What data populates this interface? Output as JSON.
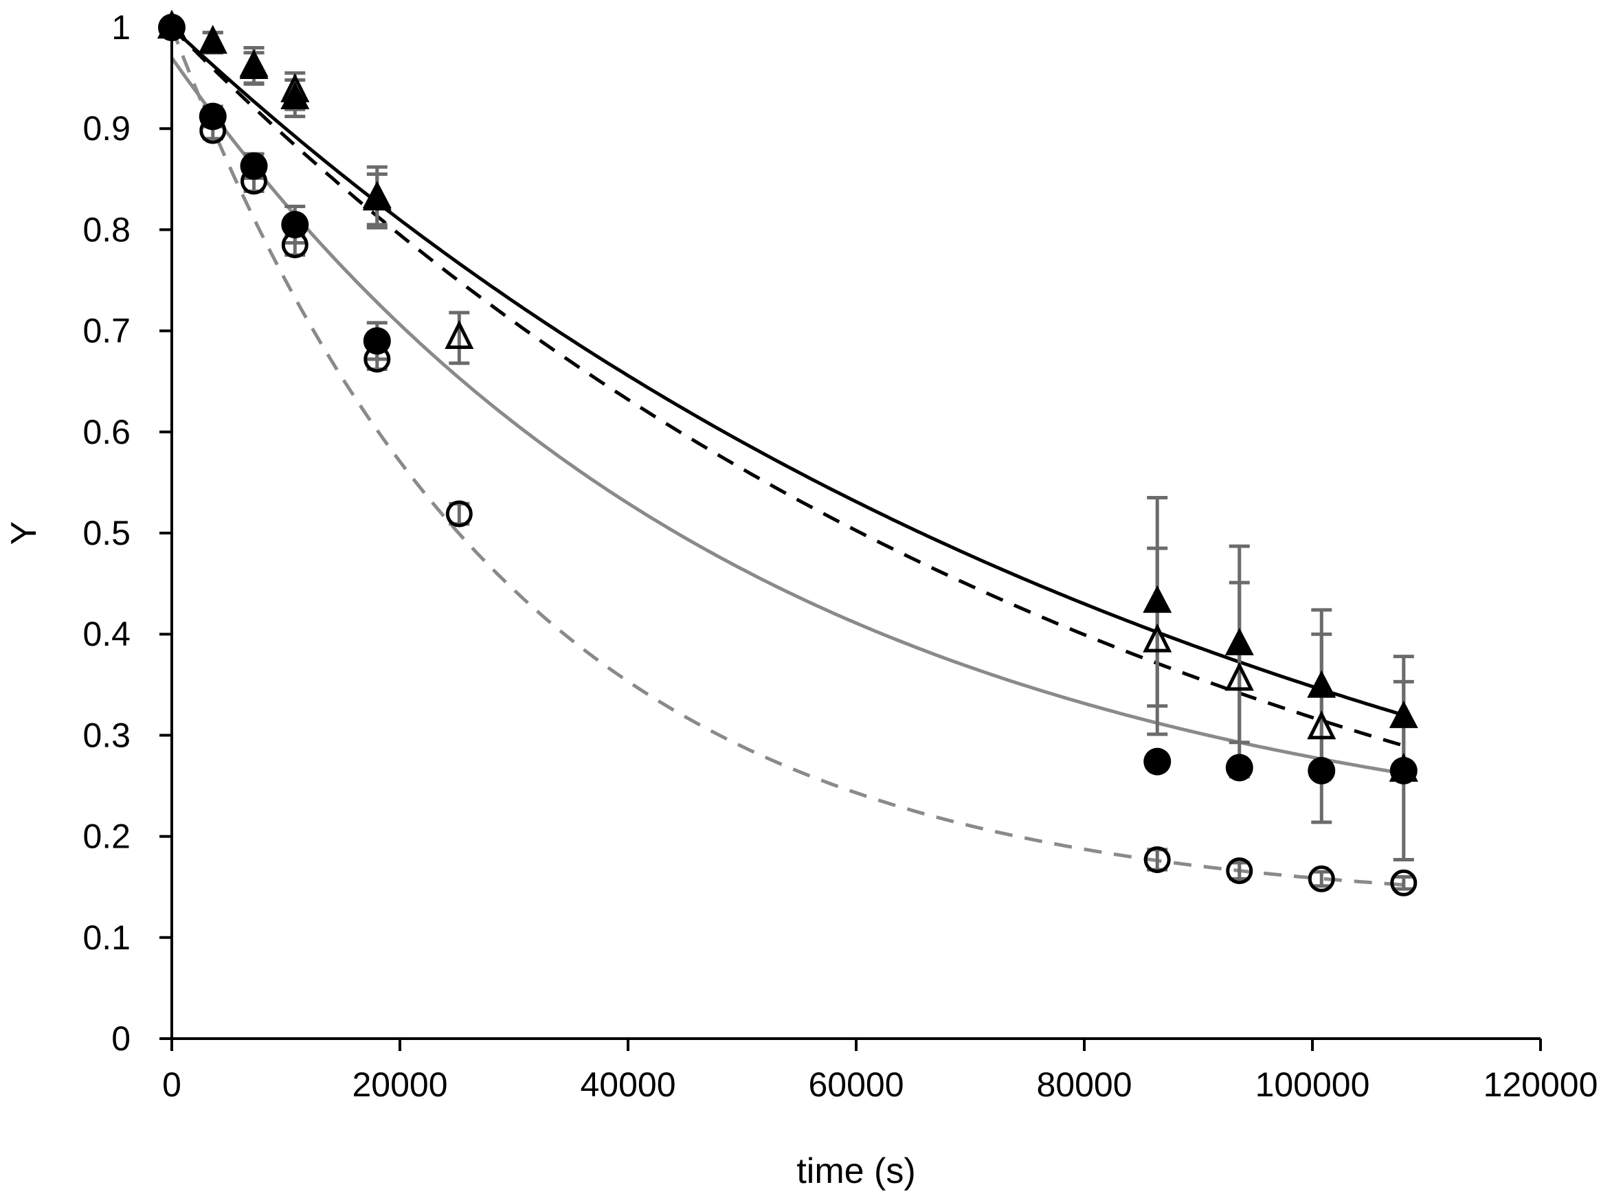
{
  "chart_data": {
    "type": "scatter",
    "title": "",
    "xlabel": "time (s)",
    "ylabel": "Y",
    "xlim": [
      0,
      120000
    ],
    "ylim": [
      0,
      1
    ],
    "x_ticks": [
      0,
      20000,
      40000,
      60000,
      80000,
      100000,
      120000
    ],
    "y_ticks": [
      0,
      0.1,
      0.2,
      0.3,
      0.4,
      0.5,
      0.6,
      0.7,
      0.8,
      0.9,
      1
    ],
    "x_tick_labels": [
      "0",
      "20000",
      "40000",
      "60000",
      "80000",
      "100000",
      "120000"
    ],
    "y_tick_labels": [
      "0",
      "0.1",
      "0.2",
      "0.3",
      "0.4",
      "0.5",
      "0.6",
      "0.7",
      "0.8",
      "0.9",
      "1"
    ],
    "grid": false,
    "legend": "none",
    "colors": {
      "black": "#000000",
      "gray_fit": "#8a8a8a",
      "error_bar": "#6b6b6b"
    },
    "series": [
      {
        "marker": "filled-triangle",
        "color": "#000000",
        "x": [
          0,
          3600,
          7200,
          10800,
          18000,
          86400,
          93600,
          100800,
          108000
        ],
        "y": [
          1.0,
          0.985,
          0.962,
          0.93,
          0.832,
          0.432,
          0.39,
          0.348,
          0.318
        ],
        "err": [
          0,
          0.01,
          0.018,
          0.018,
          0.03,
          0.103,
          0.097,
          0.076,
          0.06
        ]
      },
      {
        "marker": "open-triangle",
        "color": "#000000",
        "x": [
          0,
          3600,
          7200,
          10800,
          18000,
          25200,
          86400,
          93600,
          100800,
          108000
        ],
        "y": [
          1.0,
          0.985,
          0.96,
          0.937,
          0.83,
          0.693,
          0.393,
          0.355,
          0.307,
          0.265
        ],
        "err": [
          0,
          0.01,
          0.015,
          0.018,
          0.025,
          0.025,
          0.092,
          0.096,
          0.093,
          0.088
        ]
      },
      {
        "marker": "filled-circle",
        "color": "#000000",
        "x": [
          0,
          3600,
          7200,
          10800,
          18000,
          86400,
          93600,
          100800,
          108000
        ],
        "y": [
          1.0,
          0.912,
          0.863,
          0.805,
          0.69,
          0.274,
          0.268,
          0.265,
          0.265
        ],
        "err": [
          0,
          0.01,
          0.012,
          0.018,
          0.018,
          0,
          0,
          0,
          0
        ]
      },
      {
        "marker": "open-circle",
        "color": "#000000",
        "x": [
          0,
          3600,
          7200,
          10800,
          18000,
          25200,
          86400,
          93600,
          100800,
          108000
        ],
        "y": [
          1.0,
          0.898,
          0.848,
          0.785,
          0.672,
          0.519,
          0.177,
          0.166,
          0.158,
          0.154
        ],
        "err": [
          0,
          0.008,
          0.01,
          0.01,
          0.01,
          0.01,
          0.01,
          0.008,
          0.007,
          0.006
        ]
      }
    ],
    "fits": [
      {
        "style": "solid",
        "color": "#000000",
        "equation": "y = exp(-k t)",
        "k": 1.055e-05,
        "x_range": [
          0,
          108000
        ]
      },
      {
        "style": "dashed",
        "color": "#000000",
        "equation": "y = exp(-k t)",
        "k": 1.147e-05,
        "x_range": [
          0,
          108000
        ]
      },
      {
        "style": "solid",
        "color": "#8a8a8a",
        "equation": "y = a exp(-k t) + b",
        "a": 0.8,
        "k": 2e-05,
        "b": 0.17,
        "x_range": [
          0,
          108000
        ]
      },
      {
        "style": "dashed",
        "color": "#8a8a8a",
        "equation": "y = a exp(-k t) + b",
        "a": 0.87,
        "k": 3.4e-05,
        "b": 0.13,
        "x_range": [
          0,
          108000
        ]
      }
    ]
  }
}
